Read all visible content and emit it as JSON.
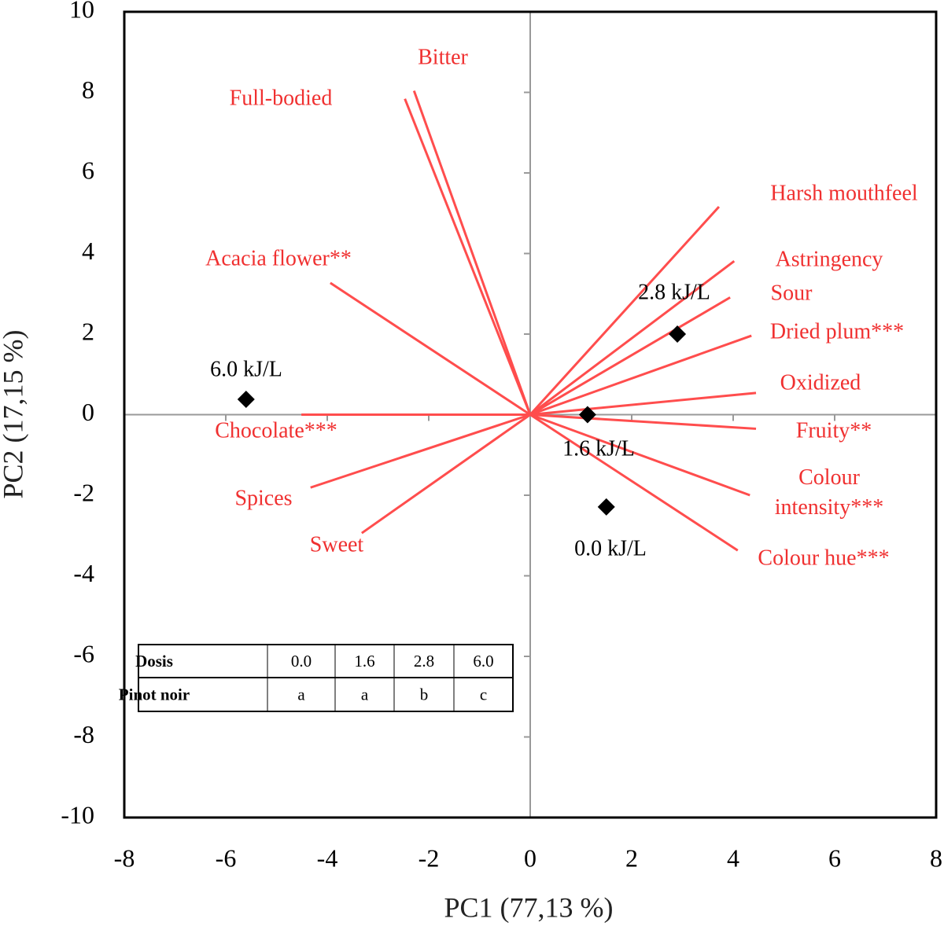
{
  "chart_data": {
    "type": "biplot",
    "x_label": "PC1 (77,13 %)",
    "y_label": "PC2 (17,15 %)",
    "xlim": [
      -8,
      8
    ],
    "ylim": [
      -10,
      10
    ],
    "xticks": [
      -8,
      -6,
      -4,
      -2,
      0,
      2,
      4,
      6,
      8
    ],
    "yticks": [
      -10,
      -8,
      -6,
      -4,
      -2,
      0,
      2,
      4,
      6,
      8,
      10
    ],
    "loading_color": "#ff4d4d",
    "point_color": "#000000",
    "loadings": [
      {
        "name": "Bitter",
        "x": -2.29,
        "y": 8.04
      },
      {
        "name": "Full-bodied",
        "x": -2.47,
        "y": 7.84
      },
      {
        "name": "Acacia flower**",
        "x": -3.94,
        "y": 3.27
      },
      {
        "name": "Chocolate***",
        "x": -4.51,
        "y": 0
      },
      {
        "name": "Spices",
        "x": -4.33,
        "y": -1.81
      },
      {
        "name": "Sweet",
        "x": -3.32,
        "y": -2.94
      },
      {
        "name": "Harsh mouthfeel",
        "x": 3.72,
        "y": 5.16
      },
      {
        "name": "Astringency",
        "x": 4.02,
        "y": 3.81
      },
      {
        "name": "Sour",
        "x": 3.94,
        "y": 2.91
      },
      {
        "name": "Dried plum***",
        "x": 4.36,
        "y": 1.96
      },
      {
        "name": "Oxidized",
        "x": 4.45,
        "y": 0.54
      },
      {
        "name": "Fruity**",
        "x": 4.45,
        "y": -0.35
      },
      {
        "name": "Colour intensity***",
        "x": 4.33,
        "y": -2.0
      },
      {
        "name": "Colour hue***",
        "x": 4.09,
        "y": -3.37
      }
    ],
    "points": [
      {
        "label": "6.0 kJ/L",
        "x": -5.6,
        "y": 0.38
      },
      {
        "label": "2.8 kJ/L",
        "x": 2.9,
        "y": 2.0
      },
      {
        "label": "1.6 kJ/L",
        "x": 1.13,
        "y": 0
      },
      {
        "label": "0.0 kJ/L",
        "x": 1.5,
        "y": -2.29
      }
    ],
    "inset_table": {
      "rows": [
        [
          "Dosis",
          "0.0",
          "1.6",
          "2.8",
          "6.0"
        ],
        [
          "Pinot noir",
          "a",
          "a",
          "b",
          "c"
        ]
      ]
    }
  }
}
